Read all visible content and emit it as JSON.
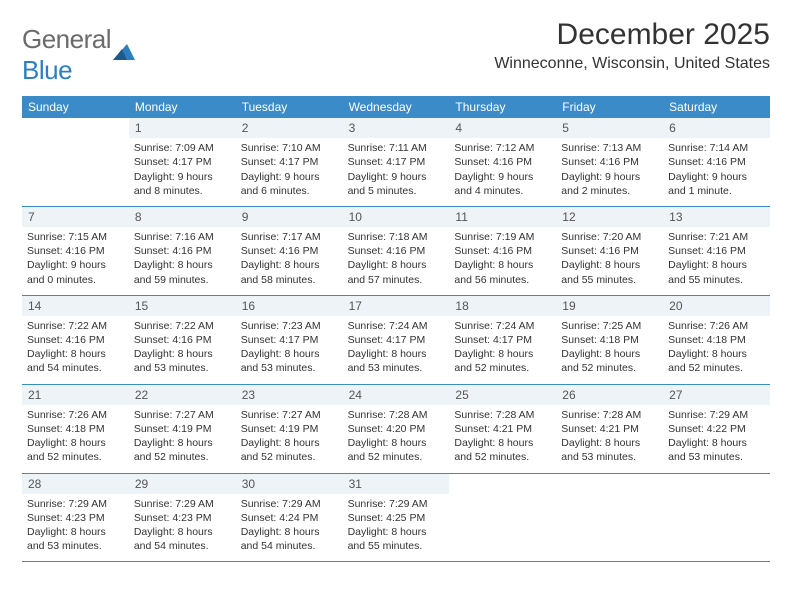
{
  "brand": {
    "part1": "General",
    "part2": "Blue"
  },
  "title": "December 2025",
  "location": "Winneconne, Wisconsin, United States",
  "colors": {
    "header_bg": "#3b8bc9",
    "header_text": "#ffffff",
    "daynum_bg": "#eef3f7",
    "row_border": "#3b8bc9",
    "logo_gray": "#6b6b6b",
    "logo_blue": "#2d7fc1",
    "body_text": "#333333"
  },
  "day_names": [
    "Sunday",
    "Monday",
    "Tuesday",
    "Wednesday",
    "Thursday",
    "Friday",
    "Saturday"
  ],
  "weeks": [
    [
      {
        "n": "",
        "sr": "",
        "ss": "",
        "dl": ""
      },
      {
        "n": "1",
        "sr": "Sunrise: 7:09 AM",
        "ss": "Sunset: 4:17 PM",
        "dl": "Daylight: 9 hours and 8 minutes."
      },
      {
        "n": "2",
        "sr": "Sunrise: 7:10 AM",
        "ss": "Sunset: 4:17 PM",
        "dl": "Daylight: 9 hours and 6 minutes."
      },
      {
        "n": "3",
        "sr": "Sunrise: 7:11 AM",
        "ss": "Sunset: 4:17 PM",
        "dl": "Daylight: 9 hours and 5 minutes."
      },
      {
        "n": "4",
        "sr": "Sunrise: 7:12 AM",
        "ss": "Sunset: 4:16 PM",
        "dl": "Daylight: 9 hours and 4 minutes."
      },
      {
        "n": "5",
        "sr": "Sunrise: 7:13 AM",
        "ss": "Sunset: 4:16 PM",
        "dl": "Daylight: 9 hours and 2 minutes."
      },
      {
        "n": "6",
        "sr": "Sunrise: 7:14 AM",
        "ss": "Sunset: 4:16 PM",
        "dl": "Daylight: 9 hours and 1 minute."
      }
    ],
    [
      {
        "n": "7",
        "sr": "Sunrise: 7:15 AM",
        "ss": "Sunset: 4:16 PM",
        "dl": "Daylight: 9 hours and 0 minutes."
      },
      {
        "n": "8",
        "sr": "Sunrise: 7:16 AM",
        "ss": "Sunset: 4:16 PM",
        "dl": "Daylight: 8 hours and 59 minutes."
      },
      {
        "n": "9",
        "sr": "Sunrise: 7:17 AM",
        "ss": "Sunset: 4:16 PM",
        "dl": "Daylight: 8 hours and 58 minutes."
      },
      {
        "n": "10",
        "sr": "Sunrise: 7:18 AM",
        "ss": "Sunset: 4:16 PM",
        "dl": "Daylight: 8 hours and 57 minutes."
      },
      {
        "n": "11",
        "sr": "Sunrise: 7:19 AM",
        "ss": "Sunset: 4:16 PM",
        "dl": "Daylight: 8 hours and 56 minutes."
      },
      {
        "n": "12",
        "sr": "Sunrise: 7:20 AM",
        "ss": "Sunset: 4:16 PM",
        "dl": "Daylight: 8 hours and 55 minutes."
      },
      {
        "n": "13",
        "sr": "Sunrise: 7:21 AM",
        "ss": "Sunset: 4:16 PM",
        "dl": "Daylight: 8 hours and 55 minutes."
      }
    ],
    [
      {
        "n": "14",
        "sr": "Sunrise: 7:22 AM",
        "ss": "Sunset: 4:16 PM",
        "dl": "Daylight: 8 hours and 54 minutes."
      },
      {
        "n": "15",
        "sr": "Sunrise: 7:22 AM",
        "ss": "Sunset: 4:16 PM",
        "dl": "Daylight: 8 hours and 53 minutes."
      },
      {
        "n": "16",
        "sr": "Sunrise: 7:23 AM",
        "ss": "Sunset: 4:17 PM",
        "dl": "Daylight: 8 hours and 53 minutes."
      },
      {
        "n": "17",
        "sr": "Sunrise: 7:24 AM",
        "ss": "Sunset: 4:17 PM",
        "dl": "Daylight: 8 hours and 53 minutes."
      },
      {
        "n": "18",
        "sr": "Sunrise: 7:24 AM",
        "ss": "Sunset: 4:17 PM",
        "dl": "Daylight: 8 hours and 52 minutes."
      },
      {
        "n": "19",
        "sr": "Sunrise: 7:25 AM",
        "ss": "Sunset: 4:18 PM",
        "dl": "Daylight: 8 hours and 52 minutes."
      },
      {
        "n": "20",
        "sr": "Sunrise: 7:26 AM",
        "ss": "Sunset: 4:18 PM",
        "dl": "Daylight: 8 hours and 52 minutes."
      }
    ],
    [
      {
        "n": "21",
        "sr": "Sunrise: 7:26 AM",
        "ss": "Sunset: 4:18 PM",
        "dl": "Daylight: 8 hours and 52 minutes."
      },
      {
        "n": "22",
        "sr": "Sunrise: 7:27 AM",
        "ss": "Sunset: 4:19 PM",
        "dl": "Daylight: 8 hours and 52 minutes."
      },
      {
        "n": "23",
        "sr": "Sunrise: 7:27 AM",
        "ss": "Sunset: 4:19 PM",
        "dl": "Daylight: 8 hours and 52 minutes."
      },
      {
        "n": "24",
        "sr": "Sunrise: 7:28 AM",
        "ss": "Sunset: 4:20 PM",
        "dl": "Daylight: 8 hours and 52 minutes."
      },
      {
        "n": "25",
        "sr": "Sunrise: 7:28 AM",
        "ss": "Sunset: 4:21 PM",
        "dl": "Daylight: 8 hours and 52 minutes."
      },
      {
        "n": "26",
        "sr": "Sunrise: 7:28 AM",
        "ss": "Sunset: 4:21 PM",
        "dl": "Daylight: 8 hours and 53 minutes."
      },
      {
        "n": "27",
        "sr": "Sunrise: 7:29 AM",
        "ss": "Sunset: 4:22 PM",
        "dl": "Daylight: 8 hours and 53 minutes."
      }
    ],
    [
      {
        "n": "28",
        "sr": "Sunrise: 7:29 AM",
        "ss": "Sunset: 4:23 PM",
        "dl": "Daylight: 8 hours and 53 minutes."
      },
      {
        "n": "29",
        "sr": "Sunrise: 7:29 AM",
        "ss": "Sunset: 4:23 PM",
        "dl": "Daylight: 8 hours and 54 minutes."
      },
      {
        "n": "30",
        "sr": "Sunrise: 7:29 AM",
        "ss": "Sunset: 4:24 PM",
        "dl": "Daylight: 8 hours and 54 minutes."
      },
      {
        "n": "31",
        "sr": "Sunrise: 7:29 AM",
        "ss": "Sunset: 4:25 PM",
        "dl": "Daylight: 8 hours and 55 minutes."
      },
      {
        "n": "",
        "sr": "",
        "ss": "",
        "dl": ""
      },
      {
        "n": "",
        "sr": "",
        "ss": "",
        "dl": ""
      },
      {
        "n": "",
        "sr": "",
        "ss": "",
        "dl": ""
      }
    ]
  ]
}
